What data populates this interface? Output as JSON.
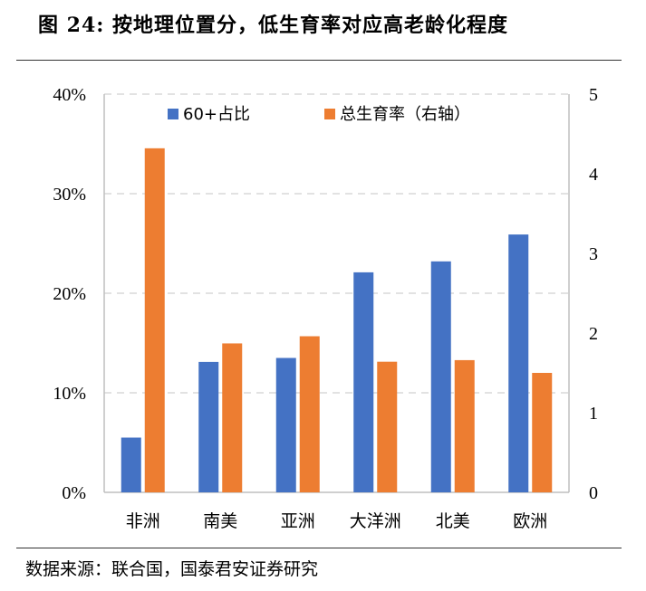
{
  "figure": {
    "title": "图  24: 按地理位置分，低生育率对应高老龄化程度",
    "source": "数据来源：联合国，国泰君安证券研究"
  },
  "colors": {
    "series_blue": "#4472C4",
    "series_orange": "#ED7D31",
    "gridline": "#d9d9d9",
    "axis": "#bfbfbf"
  },
  "chart_data": {
    "type": "bar",
    "categories": [
      "非洲",
      "南美",
      "亚洲",
      "大洋洲",
      "北美",
      "欧洲"
    ],
    "series": [
      {
        "name": "60+占比",
        "axis": "left",
        "values": [
          5.5,
          13.1,
          13.5,
          22.1,
          23.2,
          25.9
        ]
      },
      {
        "name": "总生育率（右轴）",
        "axis": "right",
        "values": [
          4.32,
          1.87,
          1.96,
          1.64,
          1.66,
          1.5
        ]
      }
    ],
    "y_left": {
      "min": 0,
      "max": 40,
      "ticks": [
        "0%",
        "10%",
        "20%",
        "30%",
        "40%"
      ]
    },
    "y_right": {
      "min": 0,
      "max": 5,
      "ticks": [
        "0",
        "1",
        "2",
        "3",
        "4",
        "5"
      ]
    },
    "grid": true,
    "legend_position": "top-left"
  }
}
